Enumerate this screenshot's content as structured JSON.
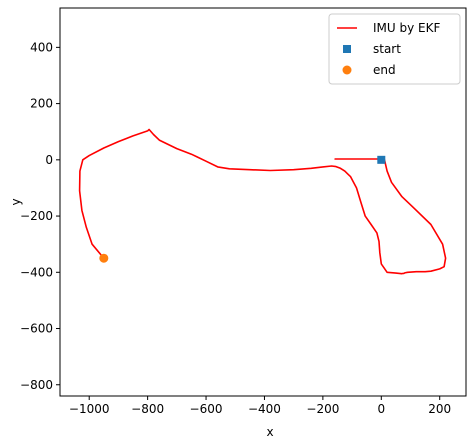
{
  "chart_data": {
    "type": "line",
    "title": "",
    "xlabel": "x",
    "ylabel": "y",
    "xlim": [
      -1100,
      290
    ],
    "ylim": [
      -840,
      540
    ],
    "xticks": [
      -1000,
      -800,
      -600,
      -400,
      -200,
      0,
      200
    ],
    "yticks": [
      -800,
      -600,
      -400,
      -200,
      0,
      200,
      400
    ],
    "grid": false,
    "legend_position": "top-right",
    "series": [
      {
        "name": "IMU by EKF",
        "kind": "line",
        "color": "#ff0000",
        "x": [
          -950,
          -990,
          -1010,
          -1025,
          -1033,
          -1032,
          -1022,
          -1000,
          -950,
          -900,
          -850,
          -800,
          -795,
          -780,
          -760,
          -740,
          -700,
          -670,
          -650,
          -630,
          -600,
          -560,
          -520,
          -450,
          -380,
          -300,
          -240,
          -200,
          -170,
          -155,
          -140,
          -125,
          -115,
          -105,
          -95,
          -85,
          -70,
          -55,
          -35,
          -15,
          -8,
          -5,
          0,
          20,
          50,
          70,
          75,
          76,
          77,
          80,
          90,
          120,
          150,
          170,
          200,
          215,
          220,
          210,
          170,
          110,
          70,
          35,
          20,
          12,
          10,
          5,
          -5,
          -20,
          -40,
          -60,
          -80,
          -100,
          -120,
          -140,
          -158
        ],
        "y": [
          -350,
          -300,
          -240,
          -180,
          -110,
          -40,
          0,
          15,
          42,
          65,
          85,
          103,
          108,
          90,
          70,
          60,
          40,
          28,
          20,
          10,
          -5,
          -25,
          -32,
          -35,
          -38,
          -35,
          -30,
          -25,
          -22,
          -24,
          -30,
          -40,
          -50,
          -60,
          -80,
          -100,
          -150,
          -200,
          -230,
          -260,
          -290,
          -330,
          -370,
          -400,
          -403,
          -405,
          -404,
          -404,
          -404,
          -402,
          -400,
          -398,
          -398,
          -396,
          -388,
          -380,
          -350,
          -300,
          -230,
          -170,
          -130,
          -80,
          -40,
          -5,
          3,
          3,
          3,
          3,
          3,
          3,
          3,
          3,
          3,
          3,
          3
        ],
        "y_note": ""
      }
    ],
    "scatter": [
      {
        "name": "start",
        "marker": "square",
        "color": "#1f77b4",
        "x": 0,
        "y": 0
      },
      {
        "name": "end",
        "marker": "circle",
        "color": "#ff7f0e",
        "x": -950,
        "y": -350
      }
    ]
  }
}
